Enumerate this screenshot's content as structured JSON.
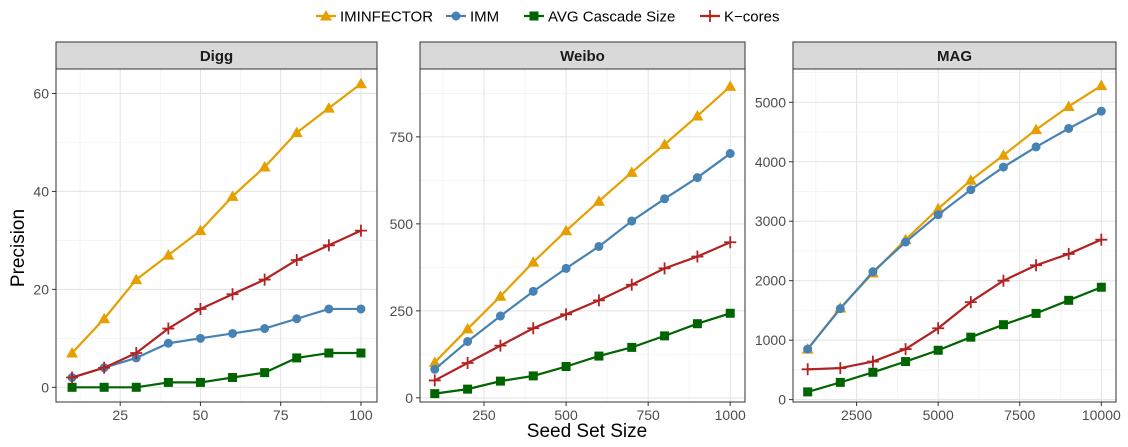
{
  "legend": {
    "position": "top",
    "entries": [
      {
        "label": "IMINFECTOR",
        "color": "#E69F00",
        "marker": "triangle"
      },
      {
        "label": "IMM",
        "color": "#4682B4",
        "marker": "circle"
      },
      {
        "label": "AVG Cascade Size",
        "color": "#006400",
        "marker": "square"
      },
      {
        "label": "K−cores",
        "color": "#B22222",
        "marker": "plus"
      }
    ]
  },
  "axes": {
    "xlabel": "Seed Set Size",
    "ylabel": "Precision"
  },
  "chart_data": [
    {
      "type": "line",
      "title": "Digg",
      "grid": true,
      "xlim": [
        5,
        105
      ],
      "ylim": [
        -3,
        65
      ],
      "xticks": [
        25,
        50,
        75,
        100
      ],
      "yticks": [
        0,
        20,
        40,
        60
      ],
      "x": [
        10,
        20,
        30,
        40,
        50,
        60,
        70,
        80,
        90,
        100
      ],
      "series": [
        {
          "name": "IMINFECTOR",
          "values": [
            7,
            14,
            22,
            27,
            32,
            39,
            45,
            52,
            57,
            62
          ]
        },
        {
          "name": "IMM",
          "values": [
            2,
            4,
            6,
            9,
            10,
            11,
            12,
            14,
            16,
            16
          ]
        },
        {
          "name": "AVG Cascade Size",
          "values": [
            0,
            0,
            0,
            1,
            1,
            2,
            3,
            6,
            7,
            7
          ]
        },
        {
          "name": "K−cores",
          "values": [
            2,
            4,
            7,
            12,
            16,
            19,
            22,
            26,
            29,
            32
          ]
        }
      ]
    },
    {
      "type": "line",
      "title": "Weibo",
      "grid": true,
      "xlim": [
        55,
        1045
      ],
      "ylim": [
        -12,
        945
      ],
      "xticks": [
        250,
        500,
        750,
        1000
      ],
      "yticks": [
        0,
        250,
        500,
        750
      ],
      "x": [
        100,
        200,
        300,
        400,
        500,
        600,
        700,
        800,
        900,
        1000
      ],
      "series": [
        {
          "name": "IMINFECTOR",
          "values": [
            102,
            198,
            292,
            390,
            480,
            565,
            648,
            728,
            810,
            895
          ]
        },
        {
          "name": "IMM",
          "values": [
            82,
            162,
            235,
            306,
            372,
            435,
            508,
            572,
            633,
            702
          ]
        },
        {
          "name": "AVG Cascade Size",
          "values": [
            12,
            25,
            48,
            63,
            90,
            120,
            145,
            178,
            213,
            243
          ]
        },
        {
          "name": "K−cores",
          "values": [
            50,
            100,
            150,
            200,
            240,
            280,
            325,
            372,
            406,
            447
          ]
        }
      ]
    },
    {
      "type": "line",
      "title": "MAG",
      "grid": true,
      "xlim": [
        550,
        10450
      ],
      "ylim": [
        -40,
        5560
      ],
      "xticks": [
        2500,
        5000,
        7500,
        10000
      ],
      "yticks": [
        0,
        1000,
        2000,
        3000,
        4000,
        5000
      ],
      "x": [
        1000,
        2000,
        3000,
        4000,
        5000,
        6000,
        7000,
        8000,
        9000,
        10000
      ],
      "series": [
        {
          "name": "IMINFECTOR",
          "values": [
            850,
            1540,
            2130,
            2690,
            3210,
            3690,
            4110,
            4540,
            4930,
            5280
          ]
        },
        {
          "name": "IMM",
          "values": [
            850,
            1530,
            2150,
            2650,
            3110,
            3530,
            3910,
            4250,
            4560,
            4850
          ]
        },
        {
          "name": "AVG Cascade Size",
          "values": [
            130,
            290,
            460,
            640,
            830,
            1050,
            1260,
            1450,
            1670,
            1890
          ]
        },
        {
          "name": "K−cores",
          "values": [
            510,
            530,
            640,
            850,
            1200,
            1640,
            2000,
            2260,
            2450,
            2690
          ]
        }
      ]
    }
  ]
}
